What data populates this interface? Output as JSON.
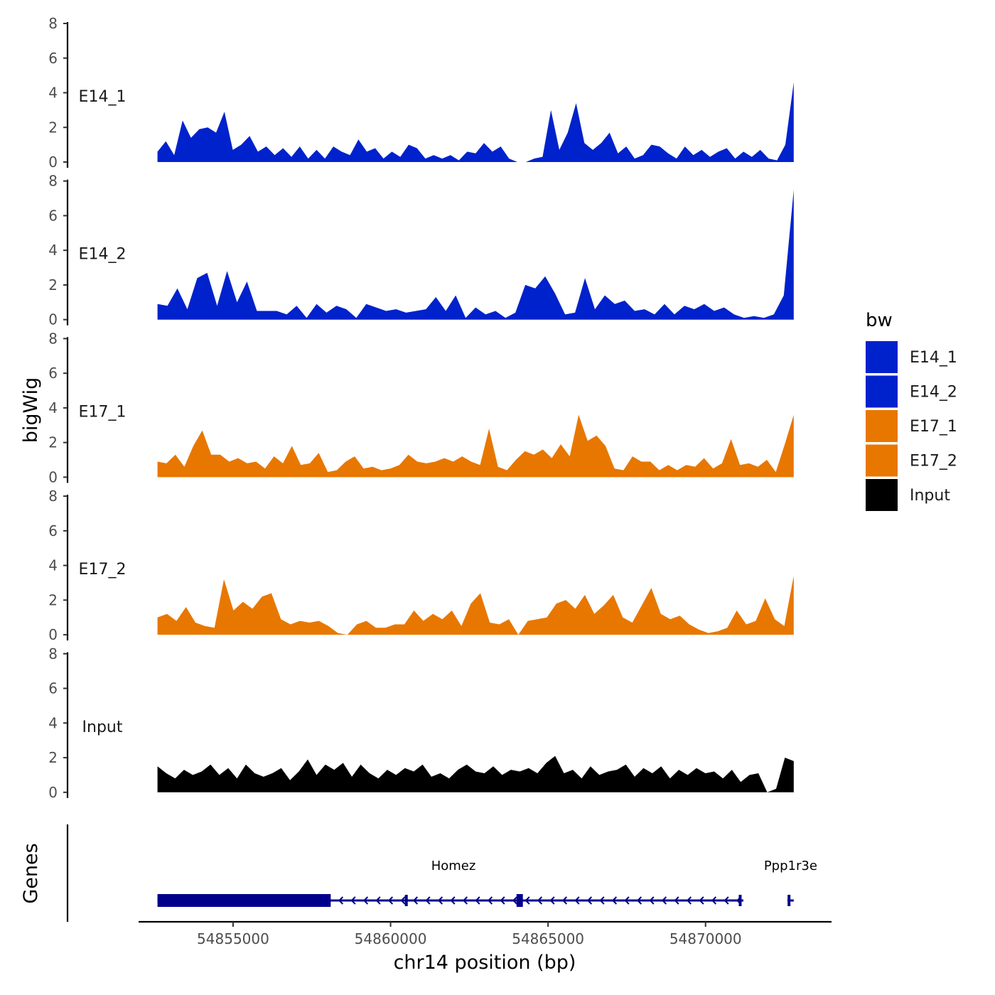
{
  "chart_data": {
    "type": "area",
    "title": "",
    "ylabel": "bigWig",
    "xlabel": "chr14 position (bp)",
    "genes_label": "Genes",
    "xlim": [
      54852000,
      54874000
    ],
    "data_range": [
      54852600,
      54872800
    ],
    "ylim": [
      0,
      8
    ],
    "yticks": [
      "0",
      "2",
      "4",
      "6",
      "8"
    ],
    "xticks": [
      {
        "value": 54855000,
        "label": "54855000"
      },
      {
        "value": 54860000,
        "label": "54860000"
      },
      {
        "value": 54865000,
        "label": "54865000"
      },
      {
        "value": 54870000,
        "label": "54870000"
      }
    ],
    "legend": {
      "title": "bw",
      "entries": [
        {
          "label": "E14_1",
          "color": "#0022CC"
        },
        {
          "label": "E14_2",
          "color": "#0022CC"
        },
        {
          "label": "E17_1",
          "color": "#E87700"
        },
        {
          "label": "E17_2",
          "color": "#E87700"
        },
        {
          "label": "Input",
          "color": "#000000"
        }
      ]
    },
    "series": [
      {
        "name": "E14_1",
        "color": "#0022CC",
        "values": [
          0.6,
          1.2,
          0.4,
          2.4,
          1.4,
          1.9,
          2.0,
          1.7,
          2.9,
          0.7,
          1.0,
          1.5,
          0.6,
          0.9,
          0.4,
          0.8,
          0.3,
          0.9,
          0.2,
          0.7,
          0.2,
          0.9,
          0.6,
          0.4,
          1.3,
          0.6,
          0.8,
          0.2,
          0.6,
          0.3,
          1.0,
          0.8,
          0.2,
          0.4,
          0.2,
          0.4,
          0.1,
          0.6,
          0.5,
          1.1,
          0.6,
          0.9,
          0.2,
          0.0,
          0.0,
          0.2,
          0.3,
          3.0,
          0.7,
          1.7,
          3.4,
          1.1,
          0.7,
          1.1,
          1.7,
          0.5,
          0.9,
          0.2,
          0.4,
          1.0,
          0.9,
          0.5,
          0.2,
          0.9,
          0.4,
          0.7,
          0.3,
          0.6,
          0.8,
          0.2,
          0.6,
          0.3,
          0.7,
          0.2,
          0.1,
          1.0,
          4.6
        ]
      },
      {
        "name": "E14_2",
        "color": "#0022CC",
        "values": [
          0.9,
          0.8,
          1.8,
          0.6,
          2.4,
          2.7,
          0.8,
          2.8,
          1.0,
          2.2,
          0.5,
          0.5,
          0.5,
          0.3,
          0.8,
          0.1,
          0.9,
          0.4,
          0.8,
          0.6,
          0.1,
          0.9,
          0.7,
          0.5,
          0.6,
          0.4,
          0.5,
          0.6,
          1.3,
          0.5,
          1.4,
          0.1,
          0.7,
          0.3,
          0.5,
          0.1,
          0.4,
          2.0,
          1.8,
          2.5,
          1.5,
          0.3,
          0.4,
          2.4,
          0.6,
          1.4,
          0.9,
          1.1,
          0.5,
          0.6,
          0.3,
          0.9,
          0.3,
          0.8,
          0.6,
          0.9,
          0.5,
          0.7,
          0.3,
          0.1,
          0.2,
          0.1,
          0.3,
          1.4,
          7.5
        ]
      },
      {
        "name": "E17_1",
        "color": "#E87700",
        "values": [
          0.9,
          0.8,
          1.3,
          0.6,
          1.8,
          2.7,
          1.3,
          1.3,
          0.9,
          1.1,
          0.8,
          0.9,
          0.5,
          1.2,
          0.8,
          1.8,
          0.7,
          0.8,
          1.4,
          0.3,
          0.4,
          0.9,
          1.2,
          0.5,
          0.6,
          0.4,
          0.5,
          0.7,
          1.3,
          0.9,
          0.8,
          0.9,
          1.1,
          0.9,
          1.2,
          0.9,
          0.7,
          2.8,
          0.6,
          0.4,
          1.0,
          1.5,
          1.3,
          1.6,
          1.1,
          1.9,
          1.2,
          3.6,
          2.1,
          2.4,
          1.8,
          0.5,
          0.4,
          1.2,
          0.9,
          0.9,
          0.4,
          0.7,
          0.4,
          0.7,
          0.6,
          1.1,
          0.5,
          0.8,
          2.2,
          0.7,
          0.8,
          0.6,
          1.0,
          0.3,
          1.9,
          3.6
        ]
      },
      {
        "name": "E17_2",
        "color": "#E87700",
        "values": [
          1.0,
          1.2,
          0.8,
          1.6,
          0.7,
          0.5,
          0.4,
          3.2,
          1.4,
          1.9,
          1.5,
          2.2,
          2.4,
          0.9,
          0.6,
          0.8,
          0.7,
          0.8,
          0.5,
          0.1,
          0.0,
          0.6,
          0.8,
          0.4,
          0.4,
          0.6,
          0.6,
          1.4,
          0.8,
          1.2,
          0.9,
          1.4,
          0.5,
          1.8,
          2.4,
          0.7,
          0.6,
          0.9,
          0.0,
          0.8,
          0.9,
          1.0,
          1.8,
          2.0,
          1.5,
          2.3,
          1.2,
          1.7,
          2.3,
          1.0,
          0.7,
          1.7,
          2.7,
          1.2,
          0.9,
          1.1,
          0.6,
          0.3,
          0.1,
          0.2,
          0.4,
          1.4,
          0.6,
          0.8,
          2.1,
          0.9,
          0.5,
          3.4
        ]
      },
      {
        "name": "Input",
        "color": "#000000",
        "values": [
          1.5,
          1.1,
          0.8,
          1.3,
          1.0,
          1.2,
          1.6,
          1.0,
          1.4,
          0.8,
          1.6,
          1.1,
          0.9,
          1.1,
          1.4,
          0.7,
          1.2,
          1.9,
          1.0,
          1.6,
          1.3,
          1.7,
          0.9,
          1.6,
          1.1,
          0.8,
          1.3,
          1.0,
          1.4,
          1.2,
          1.6,
          0.9,
          1.1,
          0.8,
          1.3,
          1.6,
          1.2,
          1.1,
          1.5,
          1.0,
          1.3,
          1.2,
          1.4,
          1.1,
          1.7,
          2.1,
          1.1,
          1.3,
          0.8,
          1.5,
          1.0,
          1.2,
          1.3,
          1.6,
          0.9,
          1.4,
          1.1,
          1.5,
          0.8,
          1.3,
          1.0,
          1.4,
          1.1,
          1.2,
          0.8,
          1.3,
          0.6,
          1.0,
          1.1,
          0.0,
          0.2,
          2.0,
          1.8
        ]
      }
    ],
    "genes": [
      {
        "name": "Homez",
        "start": 54852600,
        "end": 54871200,
        "strand": "-",
        "thick": [
          [
            54852600,
            54858100
          ],
          [
            54864000,
            54864200
          ]
        ],
        "exons": [
          54860500,
          54871100
        ]
      },
      {
        "name": "Ppp1r3e",
        "start": 54872600,
        "end": 54872800,
        "strand": "-",
        "thick": [],
        "exons": [
          54872650
        ]
      }
    ],
    "gene_color": "#00008B"
  }
}
